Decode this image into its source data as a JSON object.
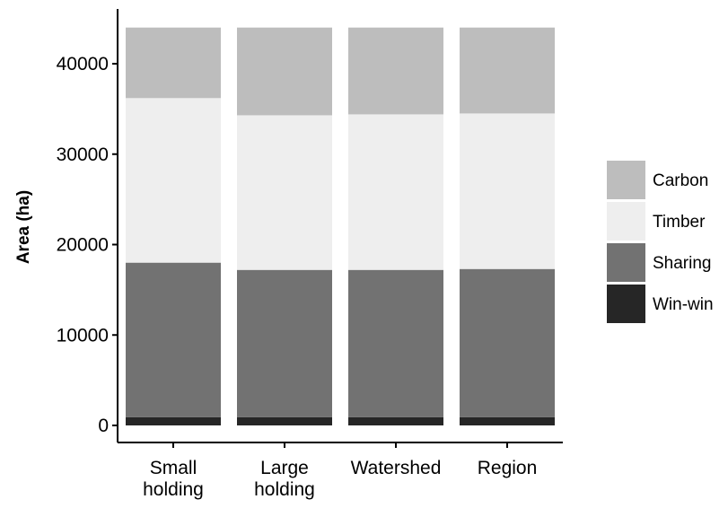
{
  "chart_data": {
    "type": "bar",
    "stacked": true,
    "categories": [
      [
        "Small",
        "holding"
      ],
      [
        "Large",
        "holding"
      ],
      [
        "Watershed"
      ],
      [
        "Region"
      ]
    ],
    "series": [
      {
        "name": "Win-win",
        "values": [
          900,
          900,
          900,
          900
        ],
        "color": "#262626"
      },
      {
        "name": "Sharing",
        "values": [
          17100,
          16300,
          16300,
          16400
        ],
        "color": "#727272"
      },
      {
        "name": "Timber",
        "values": [
          18200,
          17100,
          17200,
          17200
        ],
        "color": "#eeeeee"
      },
      {
        "name": "Carbon",
        "values": [
          7800,
          9700,
          9600,
          9500
        ],
        "color": "#bdbdbd"
      }
    ],
    "ylabel": "Area (ha)",
    "xlabel": "",
    "ylim": [
      0,
      44000
    ],
    "yticks": [
      0,
      10000,
      20000,
      30000,
      40000
    ],
    "grid": false,
    "legend": {
      "placement": "right",
      "order": [
        "Carbon",
        "Timber",
        "Sharing",
        "Win-win"
      ]
    }
  }
}
